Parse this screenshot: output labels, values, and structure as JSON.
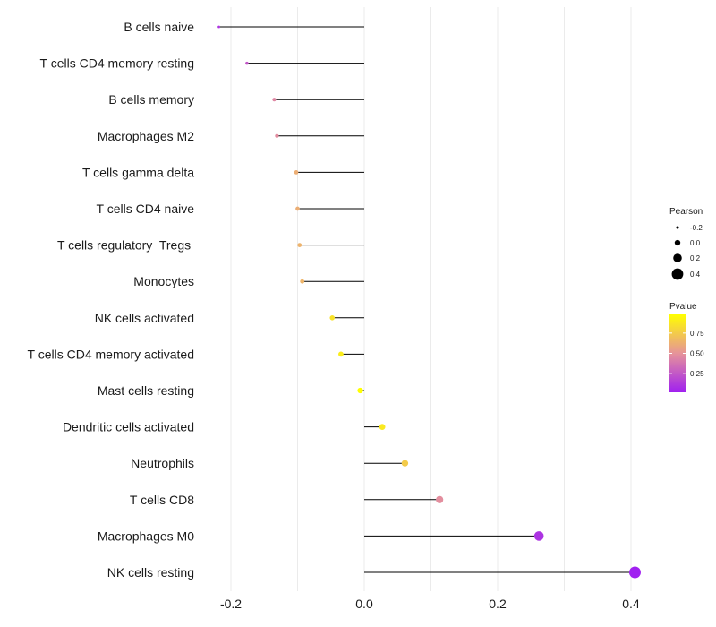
{
  "chart_data": {
    "type": "lollipop",
    "title": "",
    "xlabel": "",
    "ylabel": "",
    "xlim": [
      -0.2,
      0.4
    ],
    "xticks": [
      -0.2,
      0.0,
      0.2,
      0.4
    ],
    "xtick_labels": [
      "-0.2",
      "0.0",
      "0.2",
      "0.4"
    ],
    "grid": true,
    "categories": [
      "B cells naive",
      "T cells CD4 memory resting",
      "B cells memory",
      "Macrophages M2",
      "T cells gamma delta",
      "T cells CD4 naive",
      "T cells regulatory  Tregs ",
      "Monocytes",
      "NK cells activated",
      "T cells CD4 memory activated",
      "Mast cells resting",
      "Dendritic cells activated",
      "Neutrophils",
      "T cells CD8",
      "Macrophages M0",
      "NK cells resting"
    ],
    "pearson": [
      -0.218,
      -0.176,
      -0.135,
      -0.131,
      -0.102,
      -0.1,
      -0.097,
      -0.093,
      -0.048,
      -0.035,
      -0.006,
      0.027,
      0.061,
      0.113,
      0.262,
      0.406
    ],
    "pvalue": [
      0.11,
      0.25,
      0.45,
      0.47,
      0.62,
      0.62,
      0.64,
      0.65,
      0.85,
      0.9,
      0.98,
      0.88,
      0.75,
      0.48,
      0.1,
      0.02
    ],
    "legend": {
      "size_title": "Pearson",
      "size_labels": [
        "-0.2",
        "0.0",
        "0.2",
        "0.4"
      ],
      "size_values": [
        -0.2,
        0.0,
        0.2,
        0.4
      ],
      "color_title": "Pvalue",
      "color_labels": [
        "0.75",
        "0.50",
        "0.25"
      ],
      "color_values": [
        0.75,
        0.5,
        0.25
      ],
      "color_range": [
        0.02,
        0.98
      ],
      "placement": "right"
    },
    "colors": {
      "low_pvalue": "#a020f0",
      "mid_pvalue": "#e6939a",
      "high_pvalue": "#ffff00",
      "stem": "#000000",
      "grid": "#ebebeb"
    }
  }
}
